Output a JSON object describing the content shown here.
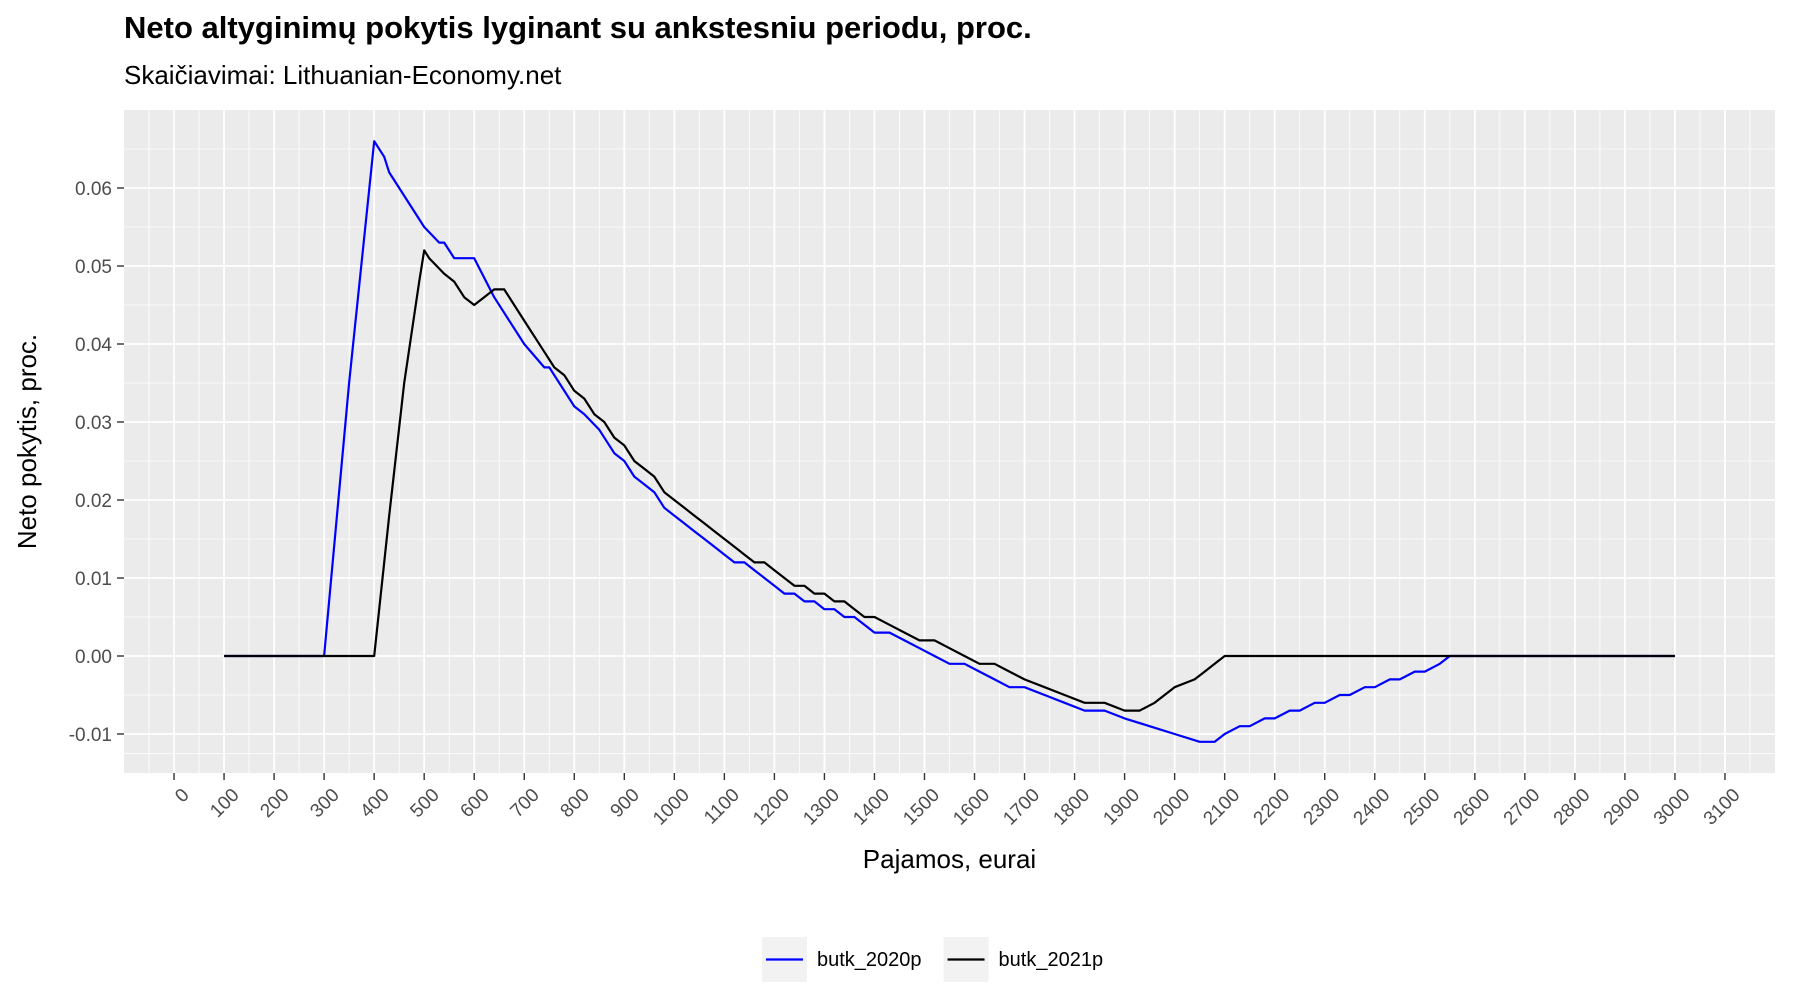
{
  "chart_data": {
    "type": "line",
    "title": "Neto altyginimų pokytis lyginant su ankstesniu periodu, proc.",
    "subtitle": "Skaičiavimai: Lithuanian-Economy.net",
    "xlabel": "Pajamos, eurai",
    "ylabel": "Neto pokytis, proc.",
    "xlim": [
      -100,
      3200
    ],
    "ylim": [
      -0.015,
      0.07
    ],
    "x_ticks": [
      0,
      100,
      200,
      300,
      400,
      500,
      600,
      700,
      800,
      900,
      1000,
      1100,
      1200,
      1300,
      1400,
      1500,
      1600,
      1700,
      1800,
      1900,
      2000,
      2100,
      2200,
      2300,
      2400,
      2500,
      2600,
      2700,
      2800,
      2900,
      3000,
      3100
    ],
    "y_ticks": [
      -0.01,
      0.0,
      0.01,
      0.02,
      0.03,
      0.04,
      0.05,
      0.06
    ],
    "y_tick_labels": [
      "-0.01",
      "0.00",
      "0.01",
      "0.02",
      "0.03",
      "0.04",
      "0.05",
      "0.06"
    ],
    "grid": true,
    "legend_position": "bottom",
    "series": [
      {
        "name": "butk_2020p",
        "color": "#0000ff",
        "x": [
          100,
          300,
          350,
          400,
          420,
          430,
          500,
          530,
          540,
          560,
          600,
          640,
          660,
          700,
          740,
          750,
          800,
          820,
          850,
          880,
          900,
          920,
          940,
          960,
          980,
          1000,
          1020,
          1040,
          1060,
          1080,
          1100,
          1120,
          1140,
          1160,
          1180,
          1200,
          1220,
          1240,
          1260,
          1280,
          1300,
          1320,
          1340,
          1360,
          1380,
          1400,
          1430,
          1460,
          1490,
          1520,
          1550,
          1580,
          1610,
          1640,
          1670,
          1700,
          1740,
          1780,
          1820,
          1860,
          1900,
          1950,
          2000,
          2050,
          2080,
          2100,
          2130,
          2150,
          2180,
          2200,
          2230,
          2250,
          2280,
          2300,
          2330,
          2350,
          2380,
          2400,
          2430,
          2450,
          2480,
          2500,
          2530,
          2550,
          3000
        ],
        "y": [
          0,
          0,
          0.035,
          0.066,
          0.064,
          0.062,
          0.055,
          0.053,
          0.053,
          0.051,
          0.051,
          0.046,
          0.044,
          0.04,
          0.037,
          0.037,
          0.032,
          0.031,
          0.029,
          0.026,
          0.025,
          0.023,
          0.022,
          0.021,
          0.019,
          0.018,
          0.017,
          0.016,
          0.015,
          0.014,
          0.013,
          0.012,
          0.012,
          0.011,
          0.01,
          0.009,
          0.008,
          0.008,
          0.007,
          0.007,
          0.006,
          0.006,
          0.005,
          0.005,
          0.004,
          0.003,
          0.003,
          0.002,
          0.001,
          0.0,
          -0.001,
          -0.001,
          -0.002,
          -0.003,
          -0.004,
          -0.004,
          -0.005,
          -0.006,
          -0.007,
          -0.007,
          -0.008,
          -0.009,
          -0.01,
          -0.011,
          -0.011,
          -0.01,
          -0.009,
          -0.009,
          -0.008,
          -0.008,
          -0.007,
          -0.007,
          -0.006,
          -0.006,
          -0.005,
          -0.005,
          -0.004,
          -0.004,
          -0.003,
          -0.003,
          -0.002,
          -0.002,
          -0.001,
          0.0,
          0.0
        ]
      },
      {
        "name": "butk_2021p",
        "color": "#000000",
        "x": [
          100,
          400,
          430,
          460,
          490,
          500,
          510,
          540,
          560,
          580,
          600,
          620,
          640,
          660,
          700,
          740,
          760,
          780,
          800,
          820,
          840,
          860,
          880,
          900,
          920,
          940,
          960,
          980,
          1000,
          1020,
          1040,
          1060,
          1080,
          1100,
          1120,
          1140,
          1160,
          1180,
          1200,
          1220,
          1240,
          1260,
          1280,
          1300,
          1320,
          1340,
          1360,
          1380,
          1400,
          1430,
          1460,
          1490,
          1520,
          1550,
          1580,
          1610,
          1640,
          1670,
          1700,
          1740,
          1780,
          1820,
          1860,
          1900,
          1930,
          1960,
          2000,
          2040,
          2060,
          2080,
          2100,
          2600,
          3000
        ],
        "y": [
          0,
          0,
          0.018,
          0.035,
          0.048,
          0.052,
          0.051,
          0.049,
          0.048,
          0.046,
          0.045,
          0.046,
          0.047,
          0.047,
          0.043,
          0.039,
          0.037,
          0.036,
          0.034,
          0.033,
          0.031,
          0.03,
          0.028,
          0.027,
          0.025,
          0.024,
          0.023,
          0.021,
          0.02,
          0.019,
          0.018,
          0.017,
          0.016,
          0.015,
          0.014,
          0.013,
          0.012,
          0.012,
          0.011,
          0.01,
          0.009,
          0.009,
          0.008,
          0.008,
          0.007,
          0.007,
          0.006,
          0.005,
          0.005,
          0.004,
          0.003,
          0.002,
          0.002,
          0.001,
          0.0,
          -0.001,
          -0.001,
          -0.002,
          -0.003,
          -0.004,
          -0.005,
          -0.006,
          -0.006,
          -0.007,
          -0.007,
          -0.006,
          -0.004,
          -0.003,
          -0.002,
          -0.001,
          0.0,
          0.0,
          0.0
        ]
      }
    ]
  }
}
